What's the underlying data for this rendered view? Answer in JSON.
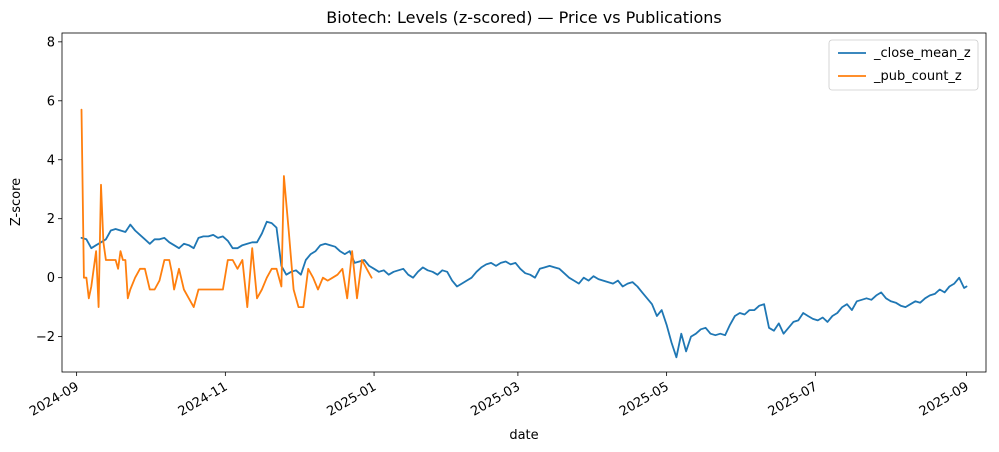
{
  "chart_data": {
    "type": "line",
    "title": "Biotech: Levels (z-scored) — Price vs Publications",
    "xlabel": "date",
    "ylabel": "Z-score",
    "x_ticks": [
      "2024-09",
      "2024-11",
      "2025-01",
      "2025-03",
      "2025-05",
      "2025-07",
      "2025-09"
    ],
    "y_ticks": [
      "−2",
      "0",
      "2",
      "4",
      "6",
      "8"
    ],
    "y_tick_values": [
      -2,
      0,
      2,
      4,
      6,
      8
    ],
    "xlim": [
      "2024-08-26",
      "2025-09-09"
    ],
    "ylim": [
      -3.2,
      8.3
    ],
    "grid": false,
    "legend_position": "top-right",
    "colors": {
      "close": "#1f77b4",
      "pub": "#ff7f0e"
    },
    "series": [
      {
        "name": "_close_mean_z",
        "color": "#1f77b4",
        "points": [
          [
            "2024-09-03",
            1.35
          ],
          [
            "2024-09-05",
            1.3
          ],
          [
            "2024-09-07",
            1.0
          ],
          [
            "2024-09-09",
            1.1
          ],
          [
            "2024-09-11",
            1.2
          ],
          [
            "2024-09-13",
            1.3
          ],
          [
            "2024-09-15",
            1.6
          ],
          [
            "2024-09-17",
            1.65
          ],
          [
            "2024-09-19",
            1.6
          ],
          [
            "2024-09-21",
            1.55
          ],
          [
            "2024-09-23",
            1.8
          ],
          [
            "2024-09-25",
            1.6
          ],
          [
            "2024-09-27",
            1.45
          ],
          [
            "2024-09-29",
            1.3
          ],
          [
            "2024-10-01",
            1.15
          ],
          [
            "2024-10-03",
            1.3
          ],
          [
            "2024-10-05",
            1.3
          ],
          [
            "2024-10-07",
            1.35
          ],
          [
            "2024-10-09",
            1.2
          ],
          [
            "2024-10-11",
            1.1
          ],
          [
            "2024-10-13",
            1.0
          ],
          [
            "2024-10-15",
            1.15
          ],
          [
            "2024-10-17",
            1.1
          ],
          [
            "2024-10-19",
            1.0
          ],
          [
            "2024-10-21",
            1.35
          ],
          [
            "2024-10-23",
            1.4
          ],
          [
            "2024-10-25",
            1.4
          ],
          [
            "2024-10-27",
            1.45
          ],
          [
            "2024-10-29",
            1.35
          ],
          [
            "2024-10-31",
            1.4
          ],
          [
            "2024-11-02",
            1.25
          ],
          [
            "2024-11-04",
            1.0
          ],
          [
            "2024-11-06",
            1.0
          ],
          [
            "2024-11-08",
            1.1
          ],
          [
            "2024-11-10",
            1.15
          ],
          [
            "2024-11-12",
            1.2
          ],
          [
            "2024-11-14",
            1.2
          ],
          [
            "2024-11-16",
            1.5
          ],
          [
            "2024-11-18",
            1.9
          ],
          [
            "2024-11-20",
            1.85
          ],
          [
            "2024-11-22",
            1.7
          ],
          [
            "2024-11-24",
            0.4
          ],
          [
            "2024-11-26",
            0.1
          ],
          [
            "2024-11-28",
            0.2
          ],
          [
            "2024-11-30",
            0.25
          ],
          [
            "2024-12-02",
            0.1
          ],
          [
            "2024-12-04",
            0.6
          ],
          [
            "2024-12-06",
            0.8
          ],
          [
            "2024-12-08",
            0.9
          ],
          [
            "2024-12-10",
            1.1
          ],
          [
            "2024-12-12",
            1.15
          ],
          [
            "2024-12-14",
            1.1
          ],
          [
            "2024-12-16",
            1.05
          ],
          [
            "2024-12-18",
            0.9
          ],
          [
            "2024-12-20",
            0.8
          ],
          [
            "2024-12-22",
            0.9
          ],
          [
            "2024-12-24",
            0.5
          ],
          [
            "2024-12-26",
            0.55
          ],
          [
            "2024-12-28",
            0.6
          ],
          [
            "2024-12-30",
            0.4
          ],
          [
            "2025-01-01",
            0.3
          ],
          [
            "2025-01-03",
            0.2
          ],
          [
            "2025-01-05",
            0.25
          ],
          [
            "2025-01-07",
            0.1
          ],
          [
            "2025-01-09",
            0.2
          ],
          [
            "2025-01-11",
            0.25
          ],
          [
            "2025-01-13",
            0.3
          ],
          [
            "2025-01-15",
            0.1
          ],
          [
            "2025-01-17",
            0.0
          ],
          [
            "2025-01-19",
            0.2
          ],
          [
            "2025-01-21",
            0.35
          ],
          [
            "2025-01-23",
            0.25
          ],
          [
            "2025-01-25",
            0.2
          ],
          [
            "2025-01-27",
            0.1
          ],
          [
            "2025-01-29",
            0.25
          ],
          [
            "2025-01-31",
            0.2
          ],
          [
            "2025-02-02",
            -0.1
          ],
          [
            "2025-02-04",
            -0.3
          ],
          [
            "2025-02-06",
            -0.2
          ],
          [
            "2025-02-08",
            -0.1
          ],
          [
            "2025-02-10",
            0.0
          ],
          [
            "2025-02-12",
            0.2
          ],
          [
            "2025-02-14",
            0.35
          ],
          [
            "2025-02-16",
            0.45
          ],
          [
            "2025-02-18",
            0.5
          ],
          [
            "2025-02-20",
            0.4
          ],
          [
            "2025-02-22",
            0.5
          ],
          [
            "2025-02-24",
            0.55
          ],
          [
            "2025-02-26",
            0.45
          ],
          [
            "2025-02-28",
            0.5
          ],
          [
            "2025-03-02",
            0.3
          ],
          [
            "2025-03-04",
            0.15
          ],
          [
            "2025-03-06",
            0.1
          ],
          [
            "2025-03-08",
            0.0
          ],
          [
            "2025-03-10",
            0.3
          ],
          [
            "2025-03-12",
            0.35
          ],
          [
            "2025-03-14",
            0.4
          ],
          [
            "2025-03-16",
            0.35
          ],
          [
            "2025-03-18",
            0.3
          ],
          [
            "2025-03-20",
            0.15
          ],
          [
            "2025-03-22",
            0.0
          ],
          [
            "2025-03-24",
            -0.1
          ],
          [
            "2025-03-26",
            -0.2
          ],
          [
            "2025-03-28",
            0.0
          ],
          [
            "2025-03-30",
            -0.1
          ],
          [
            "2025-04-01",
            0.05
          ],
          [
            "2025-04-03",
            -0.05
          ],
          [
            "2025-04-05",
            -0.1
          ],
          [
            "2025-04-07",
            -0.15
          ],
          [
            "2025-04-09",
            -0.2
          ],
          [
            "2025-04-11",
            -0.1
          ],
          [
            "2025-04-13",
            -0.3
          ],
          [
            "2025-04-15",
            -0.2
          ],
          [
            "2025-04-17",
            -0.15
          ],
          [
            "2025-04-19",
            -0.3
          ],
          [
            "2025-04-21",
            -0.5
          ],
          [
            "2025-04-23",
            -0.7
          ],
          [
            "2025-04-25",
            -0.9
          ],
          [
            "2025-04-27",
            -1.3
          ],
          [
            "2025-04-29",
            -1.1
          ],
          [
            "2025-05-01",
            -1.6
          ],
          [
            "2025-05-03",
            -2.2
          ],
          [
            "2025-05-05",
            -2.7
          ],
          [
            "2025-05-07",
            -1.9
          ],
          [
            "2025-05-09",
            -2.5
          ],
          [
            "2025-05-11",
            -2.0
          ],
          [
            "2025-05-13",
            -1.9
          ],
          [
            "2025-05-15",
            -1.75
          ],
          [
            "2025-05-17",
            -1.7
          ],
          [
            "2025-05-19",
            -1.9
          ],
          [
            "2025-05-21",
            -1.95
          ],
          [
            "2025-05-23",
            -1.9
          ],
          [
            "2025-05-25",
            -1.95
          ],
          [
            "2025-05-27",
            -1.6
          ],
          [
            "2025-05-29",
            -1.3
          ],
          [
            "2025-05-31",
            -1.2
          ],
          [
            "2025-06-02",
            -1.25
          ],
          [
            "2025-06-04",
            -1.1
          ],
          [
            "2025-06-06",
            -1.1
          ],
          [
            "2025-06-08",
            -0.95
          ],
          [
            "2025-06-10",
            -0.9
          ],
          [
            "2025-06-12",
            -1.7
          ],
          [
            "2025-06-14",
            -1.8
          ],
          [
            "2025-06-16",
            -1.55
          ],
          [
            "2025-06-18",
            -1.9
          ],
          [
            "2025-06-20",
            -1.7
          ],
          [
            "2025-06-22",
            -1.5
          ],
          [
            "2025-06-24",
            -1.45
          ],
          [
            "2025-06-26",
            -1.2
          ],
          [
            "2025-06-28",
            -1.3
          ],
          [
            "2025-06-30",
            -1.4
          ],
          [
            "2025-07-02",
            -1.45
          ],
          [
            "2025-07-04",
            -1.35
          ],
          [
            "2025-07-06",
            -1.5
          ],
          [
            "2025-07-08",
            -1.3
          ],
          [
            "2025-07-10",
            -1.2
          ],
          [
            "2025-07-12",
            -1.0
          ],
          [
            "2025-07-14",
            -0.9
          ],
          [
            "2025-07-16",
            -1.1
          ],
          [
            "2025-07-18",
            -0.8
          ],
          [
            "2025-07-20",
            -0.75
          ],
          [
            "2025-07-22",
            -0.7
          ],
          [
            "2025-07-24",
            -0.75
          ],
          [
            "2025-07-26",
            -0.6
          ],
          [
            "2025-07-28",
            -0.5
          ],
          [
            "2025-07-30",
            -0.7
          ],
          [
            "2025-08-01",
            -0.8
          ],
          [
            "2025-08-03",
            -0.85
          ],
          [
            "2025-08-05",
            -0.95
          ],
          [
            "2025-08-07",
            -1.0
          ],
          [
            "2025-08-09",
            -0.9
          ],
          [
            "2025-08-11",
            -0.8
          ],
          [
            "2025-08-13",
            -0.85
          ],
          [
            "2025-08-15",
            -0.7
          ],
          [
            "2025-08-17",
            -0.6
          ],
          [
            "2025-08-19",
            -0.55
          ],
          [
            "2025-08-21",
            -0.4
          ],
          [
            "2025-08-23",
            -0.5
          ],
          [
            "2025-08-25",
            -0.3
          ],
          [
            "2025-08-27",
            -0.2
          ],
          [
            "2025-08-29",
            0.0
          ],
          [
            "2025-08-31",
            -0.35
          ],
          [
            "2025-09-01",
            -0.3
          ]
        ]
      },
      {
        "name": "_pub_count_z",
        "color": "#ff7f0e",
        "points": [
          [
            "2024-09-03",
            5.7
          ],
          [
            "2024-09-04",
            0.0
          ],
          [
            "2024-09-05",
            0.0
          ],
          [
            "2024-09-06",
            -0.7
          ],
          [
            "2024-09-07",
            -0.3
          ],
          [
            "2024-09-08",
            0.3
          ],
          [
            "2024-09-09",
            0.9
          ],
          [
            "2024-09-10",
            -1.0
          ],
          [
            "2024-09-11",
            3.15
          ],
          [
            "2024-09-12",
            1.2
          ],
          [
            "2024-09-13",
            0.6
          ],
          [
            "2024-09-14",
            0.6
          ],
          [
            "2024-09-15",
            0.6
          ],
          [
            "2024-09-16",
            0.6
          ],
          [
            "2024-09-17",
            0.6
          ],
          [
            "2024-09-18",
            0.3
          ],
          [
            "2024-09-19",
            0.9
          ],
          [
            "2024-09-20",
            0.6
          ],
          [
            "2024-09-21",
            0.6
          ],
          [
            "2024-09-22",
            -0.7
          ],
          [
            "2024-09-23",
            -0.4
          ],
          [
            "2024-09-25",
            0.0
          ],
          [
            "2024-09-27",
            0.3
          ],
          [
            "2024-09-29",
            0.3
          ],
          [
            "2024-10-01",
            -0.4
          ],
          [
            "2024-10-03",
            -0.4
          ],
          [
            "2024-10-05",
            -0.1
          ],
          [
            "2024-10-07",
            0.6
          ],
          [
            "2024-10-09",
            0.6
          ],
          [
            "2024-10-10",
            0.2
          ],
          [
            "2024-10-11",
            -0.4
          ],
          [
            "2024-10-13",
            0.3
          ],
          [
            "2024-10-15",
            -0.4
          ],
          [
            "2024-10-17",
            -0.7
          ],
          [
            "2024-10-19",
            -1.0
          ],
          [
            "2024-10-21",
            -0.4
          ],
          [
            "2024-10-23",
            -0.4
          ],
          [
            "2024-10-25",
            -0.4
          ],
          [
            "2024-10-27",
            -0.4
          ],
          [
            "2024-10-29",
            -0.4
          ],
          [
            "2024-10-31",
            -0.4
          ],
          [
            "2024-11-02",
            0.6
          ],
          [
            "2024-11-04",
            0.6
          ],
          [
            "2024-11-06",
            0.3
          ],
          [
            "2024-11-08",
            0.6
          ],
          [
            "2024-11-10",
            -1.0
          ],
          [
            "2024-11-12",
            1.0
          ],
          [
            "2024-11-14",
            -0.7
          ],
          [
            "2024-11-16",
            -0.4
          ],
          [
            "2024-11-18",
            0.0
          ],
          [
            "2024-11-20",
            0.3
          ],
          [
            "2024-11-22",
            0.3
          ],
          [
            "2024-11-24",
            -0.3
          ],
          [
            "2024-11-25",
            3.45
          ],
          [
            "2024-11-27",
            1.6
          ],
          [
            "2024-11-29",
            -0.4
          ],
          [
            "2024-12-01",
            -1.0
          ],
          [
            "2024-12-03",
            -1.0
          ],
          [
            "2024-12-05",
            0.3
          ],
          [
            "2024-12-07",
            0.0
          ],
          [
            "2024-12-09",
            -0.4
          ],
          [
            "2024-12-11",
            0.0
          ],
          [
            "2024-12-13",
            -0.1
          ],
          [
            "2024-12-15",
            0.0
          ],
          [
            "2024-12-17",
            0.1
          ],
          [
            "2024-12-19",
            0.3
          ],
          [
            "2024-12-21",
            -0.7
          ],
          [
            "2024-12-23",
            0.9
          ],
          [
            "2024-12-25",
            -0.7
          ],
          [
            "2024-12-27",
            0.6
          ],
          [
            "2024-12-29",
            0.3
          ],
          [
            "2024-12-31",
            0.0
          ]
        ]
      }
    ]
  }
}
